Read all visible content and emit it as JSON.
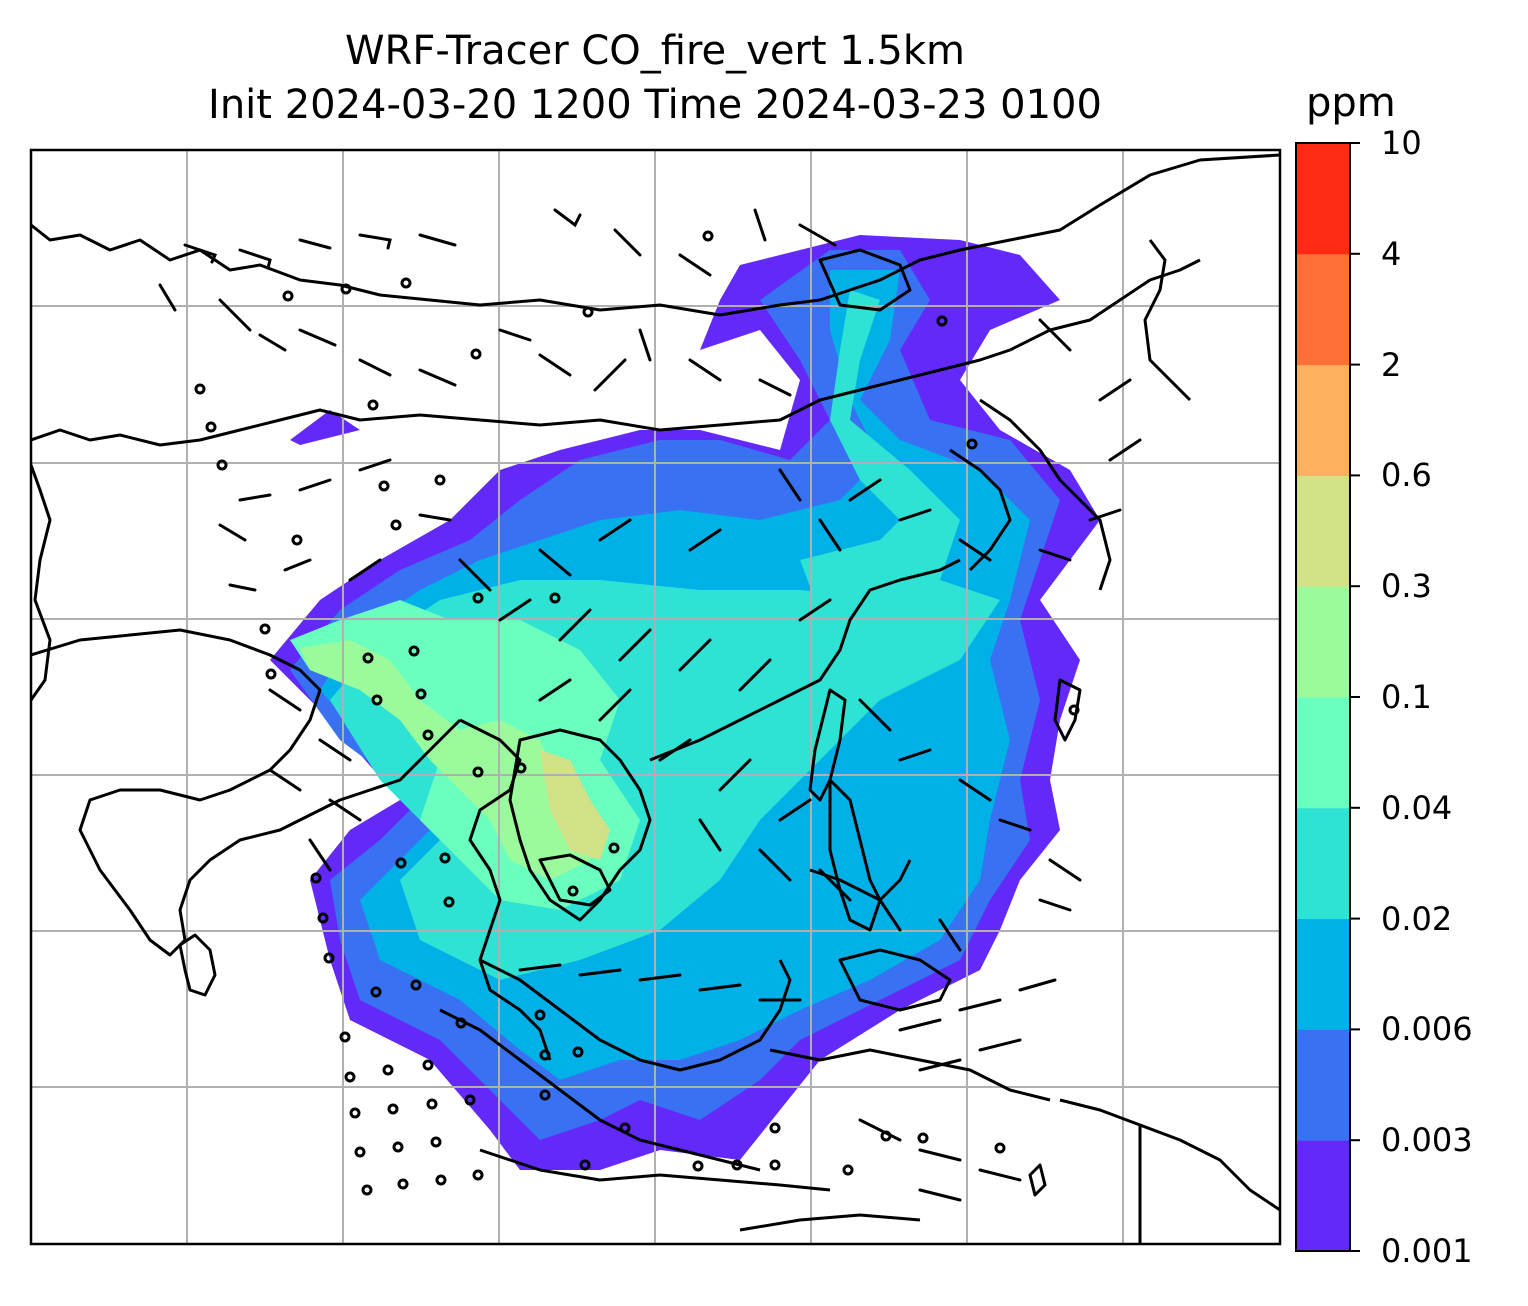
{
  "title": {
    "line1": "WRF-Tracer CO_fire_vert 1.5km",
    "line2": "Init 2024-03-20 1200 Time 2024-03-23 0100"
  },
  "colorbar": {
    "unit": "ppm",
    "tick_labels": [
      "0.001",
      "0.003",
      "0.006",
      "0.02",
      "0.04",
      "0.1",
      "0.3",
      "0.6",
      "2",
      "4",
      "10"
    ],
    "colors": [
      "#6229f9",
      "#3872f2",
      "#00b1e8",
      "#2ee2d4",
      "#6affbf",
      "#9bfb9c",
      "#d1e187",
      "#fdb060",
      "#ff7039",
      "#ff2b15"
    ]
  },
  "map": {
    "type": "filled contour with wind barbs",
    "levels": [
      "0.001",
      "0.003",
      "0.006",
      "0.02",
      "0.04",
      "0.1",
      "0.3",
      "0.6",
      "2",
      "4",
      "10"
    ],
    "gridlines": true,
    "coastlines": true,
    "wind_barbs": true
  }
}
